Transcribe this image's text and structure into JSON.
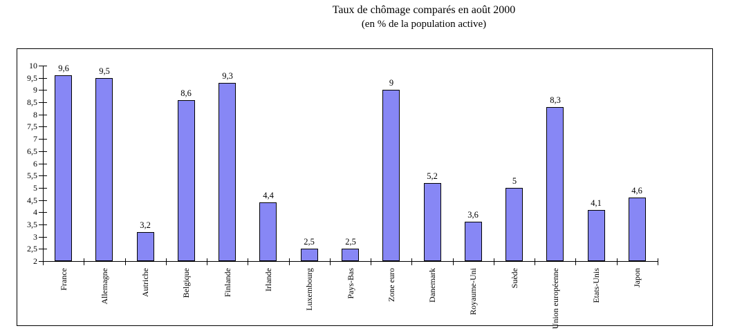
{
  "colors": {
    "background": "#FFFFFF",
    "bar_fill": "#8787F5",
    "bar_border": "#000000",
    "axis": "#000000",
    "frame_border": "#000000",
    "text": "#000000"
  },
  "chart_data": {
    "type": "bar",
    "title": "Taux de chômage comparés en août 2000",
    "subtitle": "(en % de la population active)",
    "categories": [
      "France",
      "Allemagne",
      "Autriche",
      "Belgique",
      "Finlande",
      "Irlande",
      "Luxembourg",
      "Pays-Bas",
      "Zone euro",
      "Danemark",
      "Royaume-Uni",
      "Suède",
      "Union européenne",
      "Etats-Unis",
      "Japon"
    ],
    "values": [
      9.6,
      9.5,
      3.2,
      8.6,
      9.3,
      4.4,
      2.5,
      2.5,
      9,
      5.2,
      3.6,
      5,
      8.3,
      4.1,
      4.6
    ],
    "value_labels": [
      "9,6",
      "9,5",
      "3,2",
      "8,6",
      "9,3",
      "4,4",
      "2,5",
      "2,5",
      "9",
      "5,2",
      "3,6",
      "5",
      "8,3",
      "4,1",
      "4,6"
    ],
    "xlabel": "",
    "ylabel": "",
    "ylim": [
      2,
      10
    ],
    "ytick_step": 0.5,
    "ytick_labels": [
      "2",
      "2,5",
      "3",
      "3,5",
      "4",
      "4,5",
      "5",
      "5,5",
      "6",
      "6,5",
      "7",
      "7,5",
      "8",
      "8,5",
      "9",
      "9,5",
      "10"
    ],
    "grid": "off",
    "legend": "none"
  }
}
